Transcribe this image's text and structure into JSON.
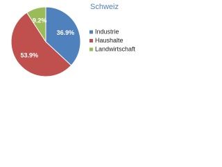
{
  "chart_data": {
    "type": "pie",
    "title": "Schweiz",
    "categories": [
      "Industrie",
      "Haushalte",
      "Landwirtschaft"
    ],
    "values": [
      36.9,
      53.9,
      9.2
    ],
    "value_labels": [
      "36.9%",
      "53.9%",
      "9.2%"
    ],
    "colors": [
      "#4f81bd",
      "#c0504d",
      "#9bbb59"
    ],
    "legend": "right"
  }
}
